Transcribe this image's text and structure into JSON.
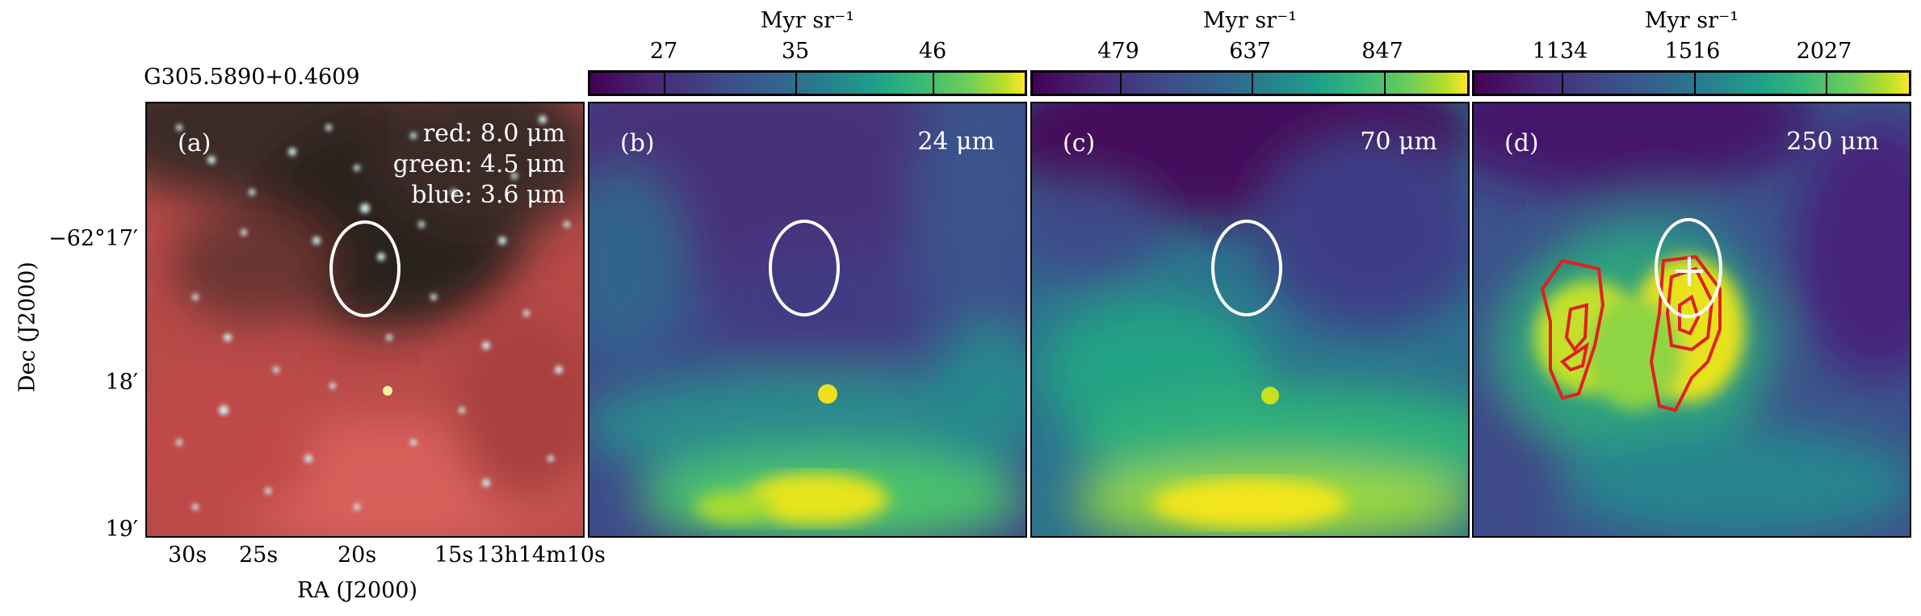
{
  "source_name": "G305.5890+0.4609",
  "axes": {
    "xlabel": "RA (J2000)",
    "ylabel": "Dec (J2000)",
    "ra_ticks": [
      "30s",
      "25s",
      "20s",
      "15s",
      "13h14m10s"
    ],
    "dec_ticks": [
      "−62°17′",
      "18′",
      "19′"
    ]
  },
  "panels": [
    {
      "id": "a",
      "label": "(a)",
      "legend": [
        "red: 8.0 μm",
        "green: 4.5 μm",
        "blue: 3.6 μm"
      ]
    },
    {
      "id": "b",
      "label": "(b)",
      "band": "24 μm",
      "colorbar": {
        "unit": "Myr sr⁻¹",
        "ticks": [
          "27",
          "35",
          "46"
        ]
      }
    },
    {
      "id": "c",
      "label": "(c)",
      "band": "70 μm",
      "colorbar": {
        "unit": "Myr sr⁻¹",
        "ticks": [
          "479",
          "637",
          "847"
        ]
      }
    },
    {
      "id": "d",
      "label": "(d)",
      "band": "250 μm",
      "colorbar": {
        "unit": "Myr sr⁻¹",
        "ticks": [
          "1134",
          "1516",
          "2027"
        ]
      }
    }
  ],
  "colors": {
    "viridis_dark": "#440154",
    "viridis_mid": "#21918c",
    "viridis_bright": "#fde725",
    "rgb_red": "#c8403f",
    "contour": "#e0201f",
    "marker": "#ffffff"
  }
}
